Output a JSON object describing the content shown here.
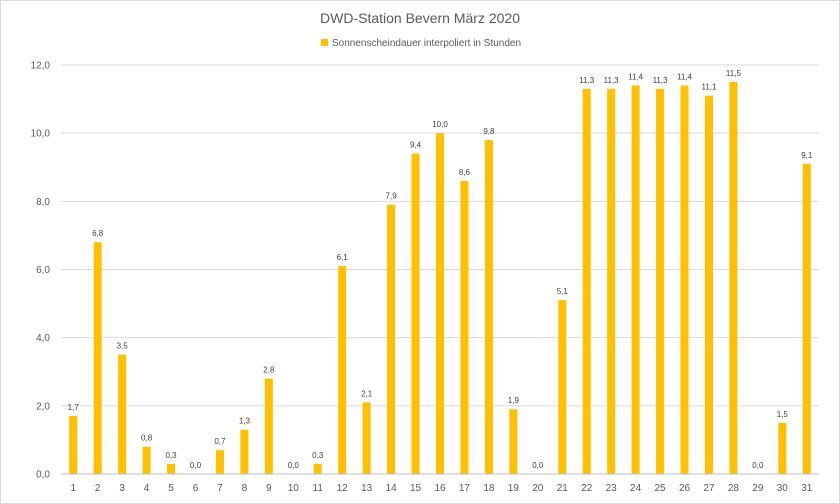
{
  "chart_data": {
    "type": "bar",
    "title": "DWD-Station Bevern März 2020",
    "xlabel": "",
    "ylabel": "",
    "categories": [
      "1",
      "2",
      "3",
      "4",
      "5",
      "6",
      "7",
      "8",
      "9",
      "10",
      "11",
      "12",
      "13",
      "14",
      "15",
      "16",
      "17",
      "18",
      "19",
      "20",
      "21",
      "22",
      "23",
      "24",
      "25",
      "26",
      "27",
      "28",
      "29",
      "30",
      "31"
    ],
    "series": [
      {
        "name": "Sonnenscheindauer interpoliert in Stunden",
        "color": "#ffc000",
        "values": [
          1.7,
          6.8,
          3.5,
          0.8,
          0.3,
          0.0,
          0.7,
          1.3,
          2.8,
          0.0,
          0.3,
          6.1,
          2.1,
          7.9,
          9.4,
          10.0,
          8.6,
          9.8,
          1.9,
          0.0,
          5.1,
          11.3,
          11.3,
          11.4,
          11.3,
          11.4,
          11.1,
          11.5,
          0.0,
          1.5,
          9.1
        ],
        "data_labels": [
          "1,7",
          "6,8",
          "3,5",
          "0,8",
          "0,3",
          "0,0",
          "0,7",
          "1,3",
          "2,8",
          "0,0",
          "0,3",
          "6,1",
          "2,1",
          "7,9",
          "9,4",
          "10,0",
          "8,6",
          "9,8",
          "1,9",
          "0,0",
          "5,1",
          "11,3",
          "11,3",
          "11,4",
          "11,3",
          "11,4",
          "11,1",
          "11,5",
          "0,0",
          "1,5",
          "9,1"
        ]
      }
    ],
    "y_ticks": [
      0,
      2,
      4,
      6,
      8,
      10,
      12
    ],
    "y_tick_labels": [
      "0,0",
      "2,0",
      "4,0",
      "6,0",
      "8,0",
      "10,0",
      "12,0"
    ],
    "ylim": [
      0,
      12
    ],
    "grid": true,
    "legend_position": "top"
  }
}
